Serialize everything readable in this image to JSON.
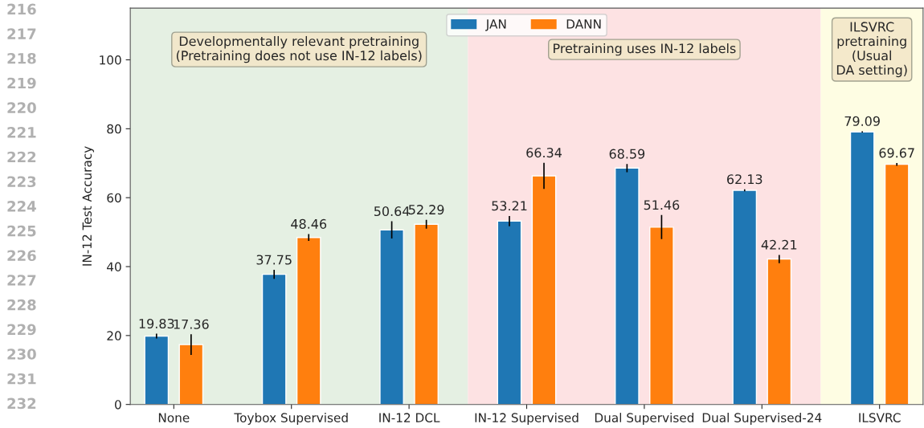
{
  "chart_data": {
    "type": "bar",
    "categories": [
      "None",
      "Toybox Supervised",
      "IN-12 DCL",
      "IN-12 Supervised",
      "Dual Supervised",
      "Dual Supervised-24",
      "ILSVRC"
    ],
    "series": [
      {
        "name": "JAN",
        "color": "#1f77b4",
        "values": [
          19.83,
          37.75,
          50.64,
          53.21,
          68.59,
          62.13,
          79.09
        ],
        "errors": [
          0.7,
          1.3,
          2.5,
          1.5,
          1.2,
          0.3,
          0.2
        ]
      },
      {
        "name": "DANN",
        "color": "#ff7f0e",
        "values": [
          17.36,
          48.46,
          52.29,
          66.34,
          51.46,
          42.21,
          69.67
        ],
        "errors": [
          3,
          1,
          1.3,
          3.8,
          3.5,
          1.2,
          0.4
        ]
      }
    ],
    "ylabel": "IN-12 Test Accuracy",
    "ylim": [
      0,
      115
    ],
    "yticks": [
      0,
      20,
      40,
      60,
      80,
      100
    ],
    "data_labels": true,
    "legend": "top",
    "grid": false,
    "bands": [
      {
        "axis": "x",
        "from": "None",
        "to": "IN-12 DCL",
        "label": "Developmentally relevant pretraining\n(Pretraining does not use IN-12 labels)",
        "color": "#e5f0e3"
      },
      {
        "axis": "x",
        "from": "IN-12 Supervised",
        "to": "Dual Supervised-24",
        "label": "Pretraining uses IN-12 labels",
        "color": "#fde2e3"
      },
      {
        "axis": "x",
        "from": "ILSVRC",
        "to": "ILSVRC",
        "label": "ILSVRC\npretraining\n(Usual\nDA setting)",
        "color": "#fefde3"
      }
    ],
    "annotations": [
      "216",
      "217",
      "218",
      "219",
      "220",
      "221",
      "222",
      "223",
      "224",
      "225",
      "226",
      "227",
      "228",
      "229",
      "230",
      "231",
      "232"
    ]
  }
}
